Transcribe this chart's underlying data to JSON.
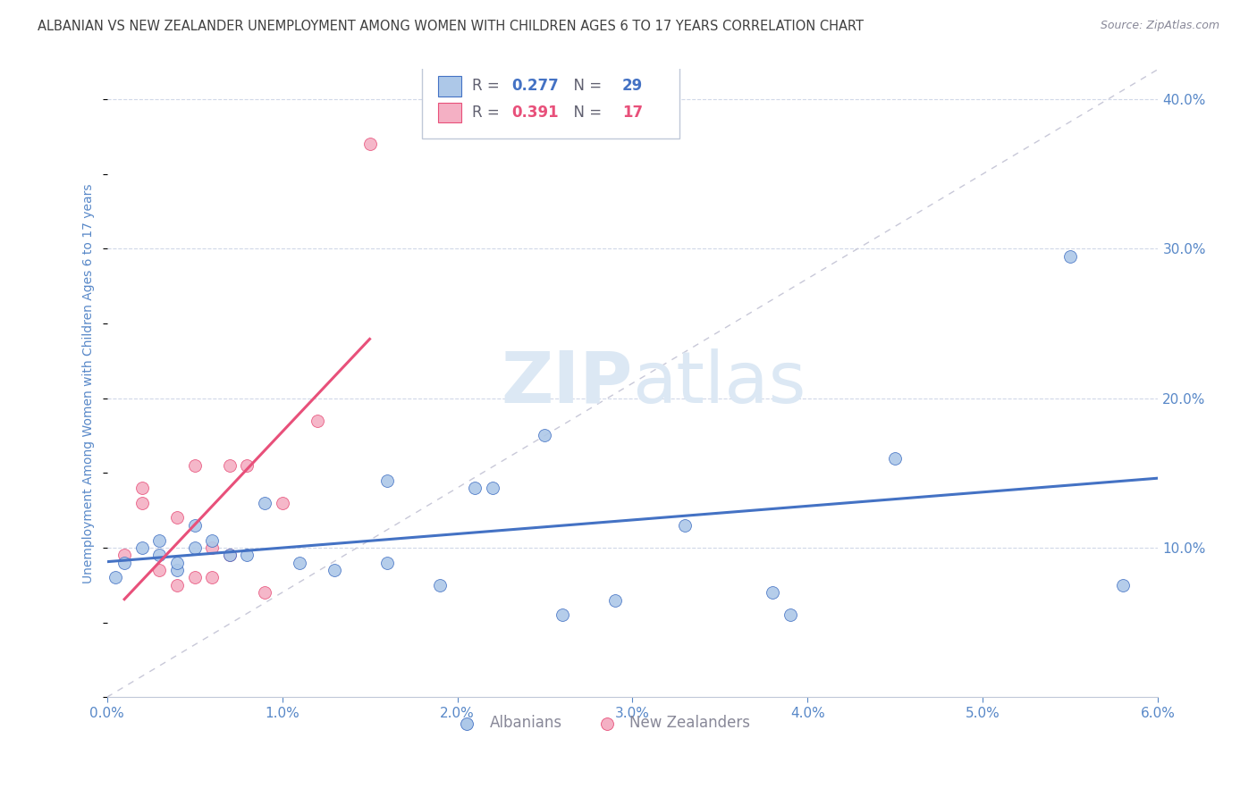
{
  "title": "ALBANIAN VS NEW ZEALANDER UNEMPLOYMENT AMONG WOMEN WITH CHILDREN AGES 6 TO 17 YEARS CORRELATION CHART",
  "source": "Source: ZipAtlas.com",
  "ylabel": "Unemployment Among Women with Children Ages 6 to 17 years",
  "xlim": [
    0.0,
    0.06
  ],
  "ylim": [
    0.0,
    0.42
  ],
  "xticks": [
    0.0,
    0.01,
    0.02,
    0.03,
    0.04,
    0.05,
    0.06
  ],
  "xticklabels": [
    "0.0%",
    "1.0%",
    "2.0%",
    "3.0%",
    "4.0%",
    "5.0%",
    "6.0%"
  ],
  "R_albanians": "0.277",
  "N_albanians": "29",
  "R_nz": "0.391",
  "N_nz": "17",
  "blue_color": "#adc8e8",
  "blue_line_color": "#4472c4",
  "pink_color": "#f4b0c4",
  "pink_line_color": "#e8507a",
  "diag_color": "#c8c8d8",
  "watermark_color": "#dce8f4",
  "background_color": "#ffffff",
  "grid_color": "#d0d8e8",
  "title_color": "#404040",
  "axis_label_color": "#5888c8",
  "source_color": "#888898",
  "legend_albanians": "Albanians",
  "legend_nz": "New Zealanders",
  "albanians_x": [
    0.0005,
    0.001,
    0.002,
    0.003,
    0.003,
    0.004,
    0.004,
    0.005,
    0.005,
    0.006,
    0.007,
    0.008,
    0.009,
    0.011,
    0.013,
    0.016,
    0.016,
    0.019,
    0.021,
    0.022,
    0.025,
    0.026,
    0.029,
    0.033,
    0.038,
    0.039,
    0.045,
    0.055,
    0.058
  ],
  "albanians_y": [
    0.08,
    0.09,
    0.1,
    0.095,
    0.105,
    0.085,
    0.09,
    0.115,
    0.1,
    0.105,
    0.095,
    0.095,
    0.13,
    0.09,
    0.085,
    0.145,
    0.09,
    0.075,
    0.14,
    0.14,
    0.175,
    0.055,
    0.065,
    0.115,
    0.07,
    0.055,
    0.16,
    0.295,
    0.075
  ],
  "nz_x": [
    0.001,
    0.002,
    0.002,
    0.003,
    0.004,
    0.004,
    0.005,
    0.005,
    0.006,
    0.006,
    0.007,
    0.007,
    0.008,
    0.009,
    0.01,
    0.012,
    0.015
  ],
  "nz_y": [
    0.095,
    0.14,
    0.13,
    0.085,
    0.12,
    0.075,
    0.155,
    0.08,
    0.1,
    0.08,
    0.095,
    0.155,
    0.155,
    0.07,
    0.13,
    0.185,
    0.37
  ],
  "dot_size": 100,
  "regression_extend_blue": true,
  "blue_reg_xstart": 0.0,
  "blue_reg_xend": 0.06,
  "pink_reg_xstart": 0.001,
  "pink_reg_xend": 0.015
}
